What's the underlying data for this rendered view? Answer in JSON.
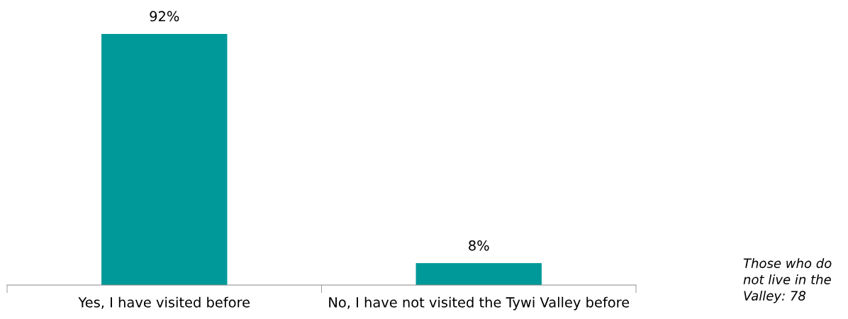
{
  "chart_data": {
    "type": "bar",
    "categories": [
      "Yes, I have visited before",
      "No, I have not visited the Tywi Valley before"
    ],
    "values": [
      92,
      8
    ],
    "color": "#009999",
    "value_labels": [
      "92%",
      "8%"
    ],
    "annotations": [
      "Those who do\nnot live in the\nValley: 78"
    ],
    "grid": false,
    "legend": false
  }
}
